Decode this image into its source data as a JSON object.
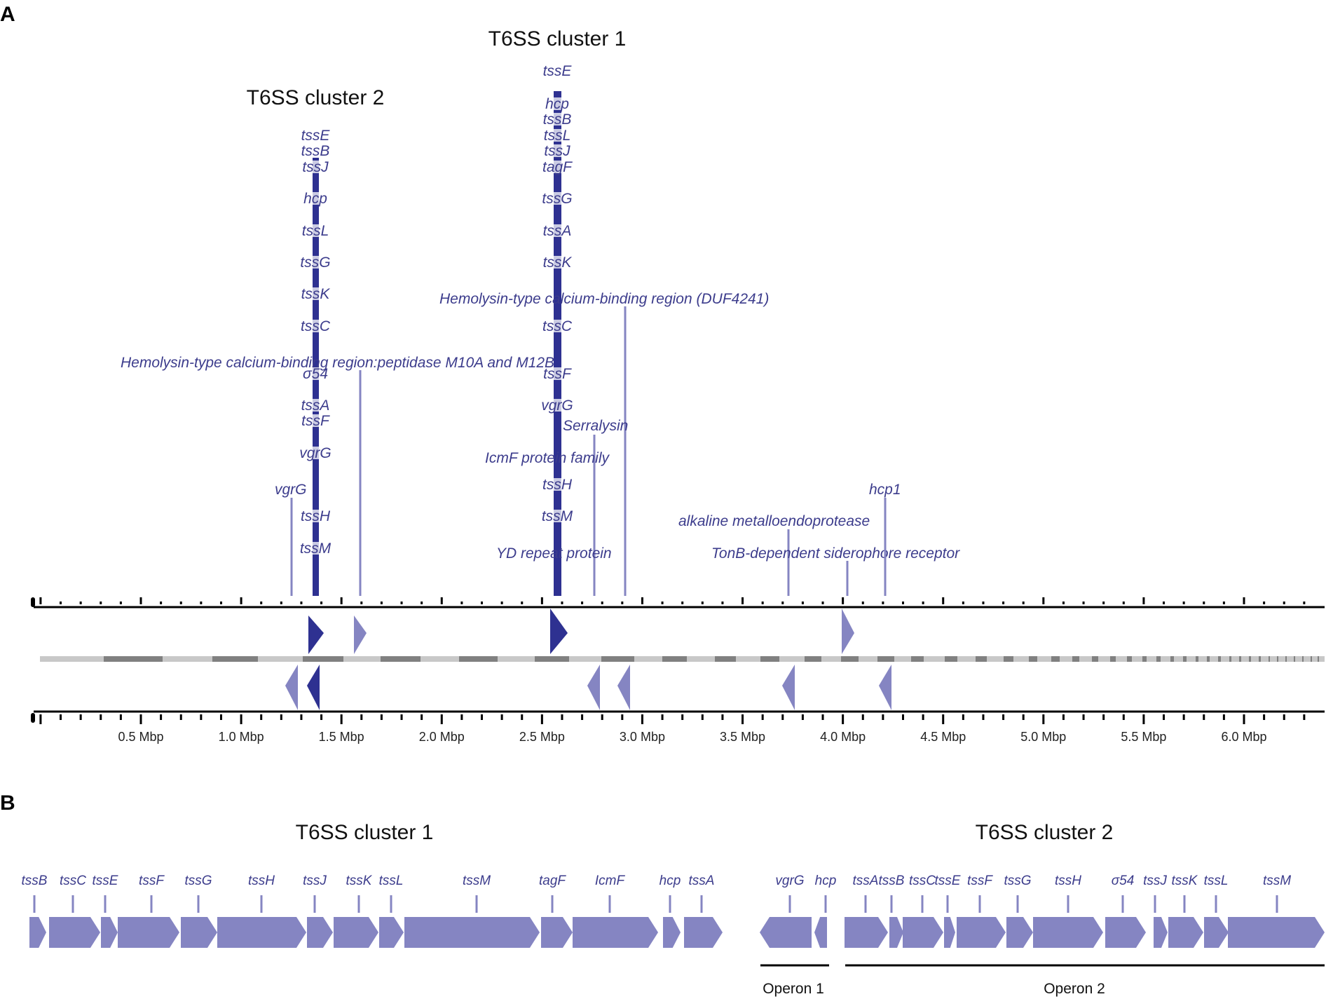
{
  "panel_a": {
    "letter": "A",
    "cluster1_title": "T6SS cluster 1",
    "cluster2_title": "T6SS cluster 2",
    "axis_labels": [
      "0.5 Mbp",
      "1.0 Mbp",
      "1.5 Mbp",
      "2.0 Mbp",
      "2.5 Mbp",
      "3.0 Mbp",
      "3.5 Mbp",
      "4.0 Mbp",
      "4.5 Mbp",
      "5.0 Mbp",
      "5.5 Mbp",
      "6.0 Mbp"
    ],
    "cluster2_genes": [
      "tssE",
      "tssB",
      "tssJ",
      "hcp",
      "tssL",
      "tssG",
      "tssK",
      "tssC",
      "σ54",
      "tssA",
      "tssF",
      "vgrG",
      "tssH",
      "tssM"
    ],
    "cluster1_genes": [
      "tssE",
      "hcp",
      "tssB",
      "tssL",
      "tssJ",
      "tagF",
      "tssG",
      "tssA",
      "tssK",
      "tssC",
      "tssF",
      "vgrG",
      "tssH",
      "tssM"
    ],
    "features": [
      {
        "label": "vgrG",
        "pos_mbp": 1.28
      },
      {
        "label": "Hemolysin-type calcium-binding region:peptidase M10A and M12B",
        "pos_mbp": 1.6
      },
      {
        "label": "Hemolysin-type calcium-binding region (DUF4241)",
        "pos_mbp": 2.92
      },
      {
        "label": "Serralysin",
        "pos_mbp": 2.75
      },
      {
        "label": "IcmF protein family",
        "pos_mbp": 2.58
      },
      {
        "label": "YD repeat protein",
        "pos_mbp": 2.6
      },
      {
        "label": "alkaline metalloendoprotease",
        "pos_mbp": 3.72
      },
      {
        "label": "TonB-dependent siderophore receptor",
        "pos_mbp": 4.0
      },
      {
        "label": "hcp1",
        "pos_mbp": 4.18
      }
    ]
  },
  "panel_b": {
    "letter": "B",
    "cluster1_title": "T6SS cluster 1",
    "cluster2_title": "T6SS cluster 2",
    "cluster1_genes": [
      "tssB",
      "tssC",
      "tssE",
      "tssF",
      "tssG",
      "tssH",
      "tssJ",
      "tssK",
      "tssL",
      "tssM",
      "tagF",
      "IcmF",
      "hcp",
      "tssA"
    ],
    "cluster2_genes": [
      "vgrG",
      "hcp",
      "tssA",
      "tssB",
      "tssC",
      "tssE",
      "tssF",
      "tssG",
      "tssH",
      "σ54",
      "tssJ",
      "tssK",
      "tssL",
      "tssM"
    ],
    "operon1": "Operon 1",
    "operon2": "Operon 2"
  },
  "colors": {
    "gene_fill": "#8585c2",
    "gene_dark": "#2e3191",
    "label": "#3c3c8c",
    "backbone_light": "#c8c8c8",
    "backbone_dark": "#808080"
  }
}
